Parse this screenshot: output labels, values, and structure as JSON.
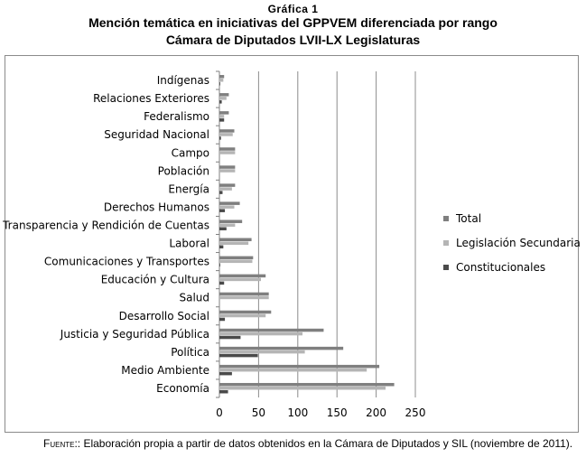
{
  "header": {
    "figure_label": "Gráfica 1",
    "title": "Mención temática en iniciativas del GPPVEM diferenciada por rango",
    "subtitle": "Cámara de Diputados LVII-LX Legislaturas"
  },
  "footer": {
    "source_label": "Fuente:",
    "source_text": ": Elaboración propia a partir de datos obtenidos en la Cámara de Diputados y SIL (noviembre de 2011)."
  },
  "colors": {
    "total": "#7f7f7f",
    "secundaria": "#b5b5b5",
    "constitucionales": "#4a4a4a",
    "grid": "#8c8c8c"
  },
  "chart_data": {
    "type": "bar",
    "orientation": "horizontal",
    "title": "Mención temática en iniciativas del GPPVEM diferenciada por rango",
    "xlabel": "",
    "ylabel": "",
    "xlim": [
      0,
      250
    ],
    "xticks": [
      0,
      50,
      100,
      150,
      200,
      250
    ],
    "grid": true,
    "legend_position": "right",
    "categories": [
      "Indígenas",
      "Relaciones Exteriores",
      "Federalismo",
      "Seguridad Nacional",
      "Campo",
      "Población",
      "Energía",
      "Derechos Humanos",
      "Transparencia y Rendición de Cuentas",
      "Laboral",
      "Comunicaciones y Transportes",
      "Educación y Cultura",
      "Salud",
      "Desarrollo Social",
      "Justicia y Seguridad Pública",
      "Política",
      "Medio Ambiente",
      "Economía"
    ],
    "series": [
      {
        "name": "Total",
        "values": [
          6,
          12,
          12,
          19,
          20,
          20,
          20,
          26,
          29,
          41,
          43,
          59,
          63,
          66,
          133,
          158,
          204,
          223
        ]
      },
      {
        "name": "Legislación Secundaria",
        "values": [
          5,
          9,
          6,
          17,
          20,
          20,
          16,
          19,
          20,
          37,
          42,
          53,
          63,
          59,
          106,
          109,
          188,
          212
        ]
      },
      {
        "name": "Constitucionales",
        "values": [
          1,
          3,
          6,
          2,
          0,
          0,
          4,
          7,
          9,
          5,
          1,
          6,
          0,
          7,
          27,
          49,
          16,
          11
        ]
      }
    ]
  }
}
